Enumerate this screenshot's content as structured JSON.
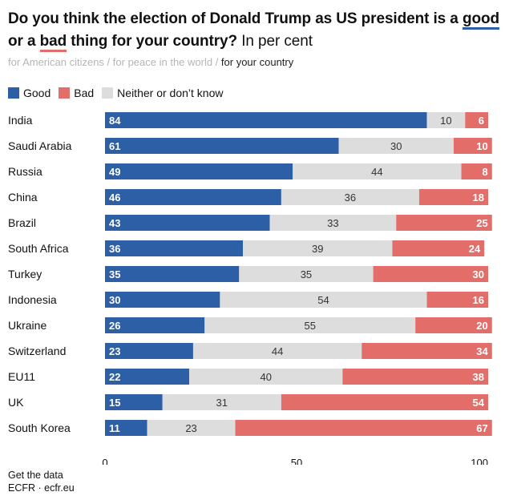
{
  "title": {
    "part1": "Do you think the election of Donald Trump as US president is a ",
    "good_word": "good",
    "part2": " or a ",
    "bad_word": "bad",
    "part3": " thing for your country?",
    "unit": " In per cent"
  },
  "tabs": [
    {
      "label": "for American citizens",
      "active": false
    },
    {
      "label": "for peace in the world",
      "active": false
    },
    {
      "label": "for your country",
      "active": true
    }
  ],
  "tab_separator": " / ",
  "footer": {
    "line1": "Get the data",
    "line2": "ECFR · ecfr.eu"
  },
  "chart_data": {
    "type": "bar",
    "orientation": "horizontal",
    "stacked": true,
    "categories": [
      "India",
      "Saudi Arabia",
      "Russia",
      "China",
      "Brazil",
      "South Africa",
      "Turkey",
      "Indonesia",
      "Ukraine",
      "Switzerland",
      "EU11",
      "UK",
      "South Korea"
    ],
    "series": [
      {
        "name": "Good",
        "color": "#2d5fa6",
        "label_color": "#ffffff",
        "values": [
          84,
          61,
          49,
          46,
          43,
          36,
          35,
          30,
          26,
          23,
          22,
          15,
          11
        ]
      },
      {
        "name": "Bad",
        "color": "#e36d69",
        "label_color": "#ffffff",
        "values": [
          6,
          10,
          8,
          18,
          25,
          24,
          30,
          16,
          20,
          34,
          38,
          54,
          67
        ]
      },
      {
        "name": "Neither or don’t know",
        "color": "#dddddd",
        "label_color": "#333333",
        "values": [
          10,
          30,
          44,
          36,
          33,
          39,
          35,
          54,
          55,
          44,
          40,
          31,
          23
        ]
      }
    ],
    "stack_order": [
      "Good",
      "Neither or don’t know",
      "Bad"
    ],
    "xlim": [
      0,
      100
    ],
    "xticks": [
      0,
      50,
      100
    ],
    "legend": "top-left"
  }
}
